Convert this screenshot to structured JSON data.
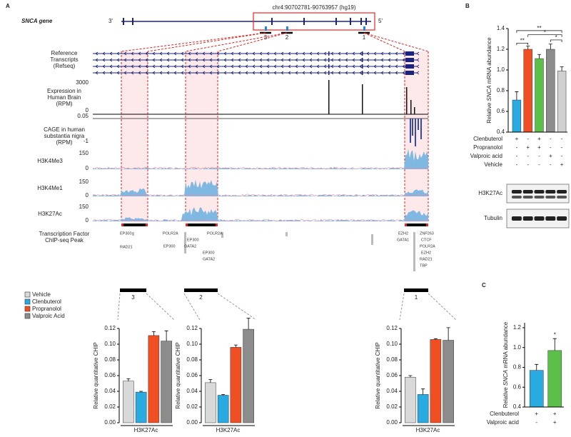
{
  "panel_a": {
    "panel": "A",
    "gene": "SNCA gene",
    "end3": "3'",
    "end5": "5'",
    "coordinates": "chr4:90702781-90763957 (hg19)",
    "exons": [
      "3",
      "2",
      "1"
    ],
    "tracks": [
      {
        "label": [
          "Reference",
          "Transcripts",
          "(Refseq)"
        ]
      },
      {
        "label": [
          "Expression in",
          "Human Brain",
          "(RPM)"
        ],
        "scale": [
          3000,
          0
        ]
      },
      {
        "label": [
          "CAGE in human",
          "substantia nigra",
          "(RPM)"
        ],
        "scale": [
          0.05,
          -1
        ]
      },
      {
        "label": [
          "H3K4Me3"
        ],
        "scale": [
          150,
          0
        ]
      },
      {
        "label": [
          "H3K4Me1"
        ],
        "scale": [
          150,
          0
        ]
      },
      {
        "label": [
          "H3K27Ac"
        ],
        "scale": [
          150,
          0
        ]
      },
      {
        "label": [
          "Transcription Factor",
          "ChIP-seq Peak"
        ]
      }
    ],
    "tf_peaks": [
      "EP300",
      "RAD21",
      "POLR2A",
      "POLR2A",
      "EP300",
      "EP300",
      "GATA2",
      "EP300",
      "GATA2",
      "EZH2",
      "ZNF263",
      "GATA1",
      "CTCF",
      "POLR2A",
      "EZH2",
      "RAD21",
      "TBP"
    ],
    "legend": [
      {
        "name": "Vehicle",
        "color": "#d9d9d9"
      },
      {
        "name": "Clenbuterol",
        "color": "#29abe2"
      },
      {
        "name": "Propranolol",
        "color": "#f04e23"
      },
      {
        "name": "Valproic Acid",
        "color": "#8c8c8c"
      }
    ]
  },
  "chart_data": [
    {
      "type": "bar",
      "region": "3",
      "ylabel": "Relative quantitative CHIP",
      "xlabel": "H3K27Ac",
      "ylim": [
        0,
        0.12
      ],
      "yticks": [
        {
          "value": 0,
          "label": "0.00"
        },
        {
          "value": 0.02,
          "label": "0.02"
        },
        {
          "value": 0.04,
          "label": "0.04"
        },
        {
          "value": 0.06,
          "label": "0.06"
        },
        {
          "value": 0.08,
          "label": "0.08"
        },
        {
          "value": 0.1,
          "label": "0.10"
        },
        {
          "value": 0.12,
          "label": "0.12"
        }
      ],
      "values": [
        0.053,
        0.039,
        0.111,
        0.104
      ],
      "errors": [
        0.003,
        0.001,
        0.005,
        0.013
      ]
    },
    {
      "type": "bar",
      "region": "2",
      "ylabel": "Relative quantitative CHIP",
      "xlabel": "H3K27Ac",
      "ylim": [
        0,
        0.12
      ],
      "yticks": [
        {
          "value": 0,
          "label": "0.00"
        },
        {
          "value": 0.02,
          "label": "0.02"
        },
        {
          "value": 0.04,
          "label": "0.04"
        },
        {
          "value": 0.06,
          "label": "0.06"
        },
        {
          "value": 0.08,
          "label": "0.08"
        },
        {
          "value": 0.1,
          "label": "0.10"
        },
        {
          "value": 0.12,
          "label": "0.12"
        }
      ],
      "values": [
        0.051,
        0.035,
        0.096,
        0.119
      ],
      "errors": [
        0.004,
        0.001,
        0.003,
        0.014
      ]
    },
    {
      "type": "bar",
      "region": "1",
      "ylabel": "Relative quantitative CHIP",
      "xlabel": "H3K27Ac",
      "ylim": [
        0,
        0.12
      ],
      "yticks": [
        {
          "value": 0,
          "label": "0.00"
        },
        {
          "value": 0.02,
          "label": "0.02"
        },
        {
          "value": 0.04,
          "label": "0.04"
        },
        {
          "value": 0.06,
          "label": "0.06"
        },
        {
          "value": 0.08,
          "label": "0.08"
        },
        {
          "value": 0.1,
          "label": "0.10"
        },
        {
          "value": 0.12,
          "label": "0.12"
        }
      ],
      "values": [
        0.058,
        0.036,
        0.106,
        0.105
      ],
      "errors": [
        0.002,
        0.007,
        0.001,
        0.016
      ]
    },
    {
      "type": "bar",
      "panel": "B",
      "ylabel": [
        "Relative ",
        "SNCA",
        " mRNA abundance"
      ],
      "ylim": [
        0.4,
        1.4
      ],
      "yticks": [
        0.4,
        0.6,
        0.8,
        {
          "value": 1,
          "label": "1.0"
        },
        1.2,
        1.4
      ],
      "values": [
        0.71,
        1.2,
        1.11,
        1.2,
        0.99
      ],
      "errors": [
        0.08,
        0.03,
        0.04,
        0.05,
        0.04
      ],
      "colors": [
        "#29abe2",
        "#f04e23",
        "#5bbf4a",
        "#8c8c8c",
        "#d0d0d0"
      ],
      "significance": [
        "**",
        "**",
        "*",
        "*"
      ],
      "conditions": [
        {
          "name": "Clenbuterol",
          "marks": [
            "+",
            "-",
            "+",
            "-",
            "-"
          ]
        },
        {
          "name": "Propranolol",
          "marks": [
            "-",
            "+",
            "+",
            "-",
            "-"
          ]
        },
        {
          "name": "Valproic acid",
          "marks": [
            "-",
            "-",
            "-",
            "+",
            "-"
          ]
        },
        {
          "name": "Vehicle",
          "marks": [
            "-",
            "-",
            "-",
            "-",
            "+"
          ]
        }
      ],
      "blots": [
        "H3K27Ac",
        "Tubulin"
      ]
    },
    {
      "type": "bar",
      "panel": "C",
      "ylabel": [
        "Relative ",
        "SNCA",
        " mRNA abundance"
      ],
      "ylim": [
        0.4,
        1.25
      ],
      "yticks": [
        0.4,
        0.6,
        0.8,
        {
          "value": 1,
          "label": "1.0"
        },
        1.2
      ],
      "values": [
        0.77,
        0.97
      ],
      "errors": [
        0.06,
        0.12
      ],
      "colors": [
        "#29abe2",
        "#5bbf4a"
      ],
      "significance": [
        "*"
      ],
      "conditions": [
        {
          "name": "Clenbuterol",
          "marks": [
            "+",
            "+"
          ]
        },
        {
          "name": "Valproic acid",
          "marks": [
            "-",
            "+"
          ]
        }
      ]
    }
  ]
}
